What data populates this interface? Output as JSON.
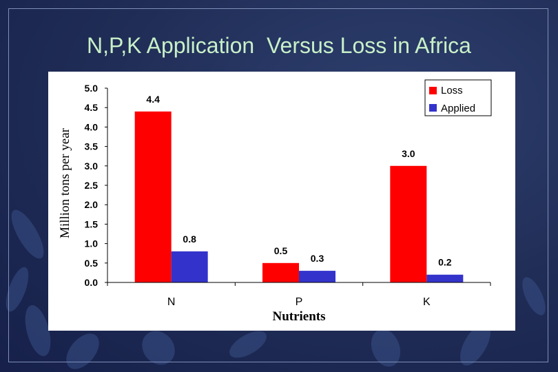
{
  "slide": {
    "title": "N,P,K Application  Versus Loss in Africa",
    "colors": {
      "background": "#1f2c55",
      "title": "#c8f0c8",
      "panel": "#ffffff"
    }
  },
  "chart_data": {
    "type": "bar",
    "title": "",
    "xlabel": "Nutrients",
    "ylabel": "Million tons per year",
    "categories": [
      "N",
      "P",
      "K"
    ],
    "series": [
      {
        "name": "Loss",
        "values": [
          4.4,
          0.5,
          3.0
        ],
        "labels": [
          "4.4",
          "0.5",
          "3.0"
        ],
        "color": "#ff0000"
      },
      {
        "name": "Applied",
        "values": [
          0.8,
          0.3,
          0.2
        ],
        "labels": [
          "0.8",
          "0.3",
          "0.2"
        ],
        "color": "#3333cc"
      }
    ],
    "ylim": [
      0,
      5
    ],
    "yticks": [
      "0.0",
      "0.5",
      "1.0",
      "1.5",
      "2.0",
      "2.5",
      "3.0",
      "3.5",
      "4.0",
      "4.5",
      "5.0"
    ],
    "grid": false,
    "legend": "top-right"
  }
}
